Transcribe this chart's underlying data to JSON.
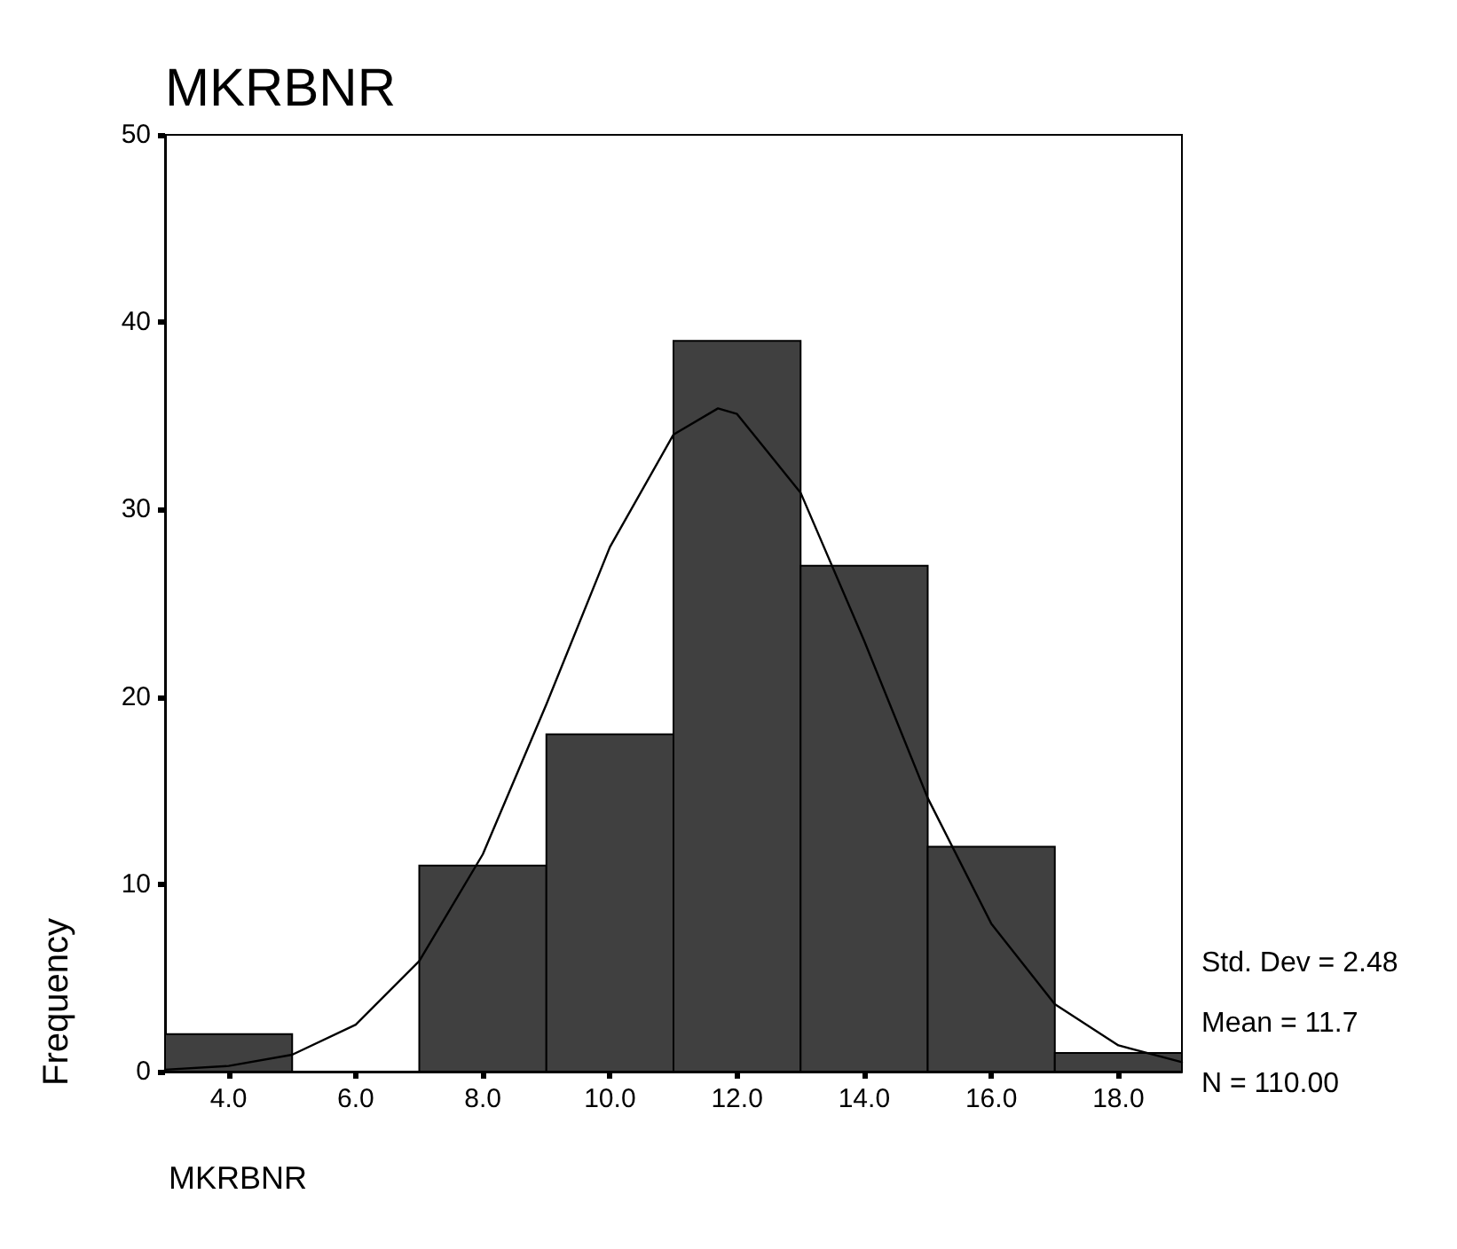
{
  "chart_data": {
    "type": "histogram",
    "title": "MKRBNR",
    "xlabel": "MKRBNR",
    "ylabel": "Frequency",
    "bins": [
      3,
      5,
      7,
      9,
      11,
      13,
      15,
      17,
      19
    ],
    "values": [
      2,
      0,
      11,
      18,
      39,
      27,
      12,
      1
    ],
    "color": "#404040",
    "series": [
      {
        "type": "line",
        "color": "#000000",
        "x": [
          3,
          4,
          5,
          6,
          7,
          8,
          9,
          10,
          11,
          11.7,
          12,
          13,
          14,
          15,
          16,
          17,
          18,
          19
        ],
        "values": [
          0.1,
          0.3,
          0.9,
          2.5,
          5.9,
          11.6,
          19.6,
          28.0,
          34.0,
          35.4,
          35.1,
          30.9,
          23.0,
          14.6,
          7.9,
          3.6,
          1.4,
          0.5
        ]
      }
    ],
    "xlim": [
      3,
      19
    ],
    "xticks": [
      {
        "value": 4,
        "label": "4.0"
      },
      {
        "value": 6,
        "label": "6.0"
      },
      {
        "value": 8,
        "label": "8.0"
      },
      {
        "value": 10,
        "label": "10.0"
      },
      {
        "value": 12,
        "label": "12.0"
      },
      {
        "value": 14,
        "label": "14.0"
      },
      {
        "value": 16,
        "label": "16.0"
      },
      {
        "value": 18,
        "label": "18.0"
      }
    ],
    "ylim": [
      0,
      50
    ],
    "yticks": [
      0,
      10,
      20,
      30,
      40,
      50
    ],
    "grid": false,
    "legend": false,
    "marker": "none",
    "line_style": "solid",
    "annotations": [
      "Std. Dev = 2.48",
      "Mean = 11.7",
      "N = 110.00"
    ]
  }
}
